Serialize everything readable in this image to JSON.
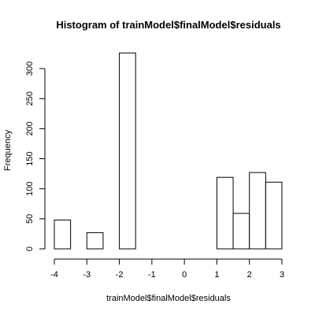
{
  "chart_data": {
    "type": "bar",
    "title": "Histogram of trainModel$finalModel$residuals",
    "xlabel": "trainModel$finalModel$residuals",
    "ylabel": "Frequency",
    "xlim": [
      -4,
      3
    ],
    "ylim": [
      0,
      325
    ],
    "x_ticks": [
      -4,
      -3,
      -2,
      -1,
      0,
      1,
      2,
      3
    ],
    "y_ticks": [
      0,
      50,
      100,
      150,
      200,
      250,
      300
    ],
    "bins": [
      {
        "x0": -4.0,
        "x1": -3.5,
        "value": 48
      },
      {
        "x0": -3.5,
        "x1": -3.0,
        "value": 0
      },
      {
        "x0": -3.0,
        "x1": -2.5,
        "value": 27
      },
      {
        "x0": -2.5,
        "x1": -2.0,
        "value": 0
      },
      {
        "x0": -2.0,
        "x1": -1.5,
        "value": 326
      },
      {
        "x0": -1.5,
        "x1": -1.0,
        "value": 0
      },
      {
        "x0": -1.0,
        "x1": -0.5,
        "value": 0
      },
      {
        "x0": -0.5,
        "x1": 0.0,
        "value": 0
      },
      {
        "x0": 0.0,
        "x1": 0.5,
        "value": 0
      },
      {
        "x0": 0.5,
        "x1": 1.0,
        "value": 0
      },
      {
        "x0": 1.0,
        "x1": 1.5,
        "value": 119
      },
      {
        "x0": 1.5,
        "x1": 2.0,
        "value": 59
      },
      {
        "x0": 2.0,
        "x1": 2.5,
        "value": 127
      },
      {
        "x0": 2.5,
        "x1": 3.0,
        "value": 111
      }
    ],
    "bar_fill": "#ffffff",
    "bar_stroke": "#000000",
    "grid": false,
    "legend": "none"
  }
}
